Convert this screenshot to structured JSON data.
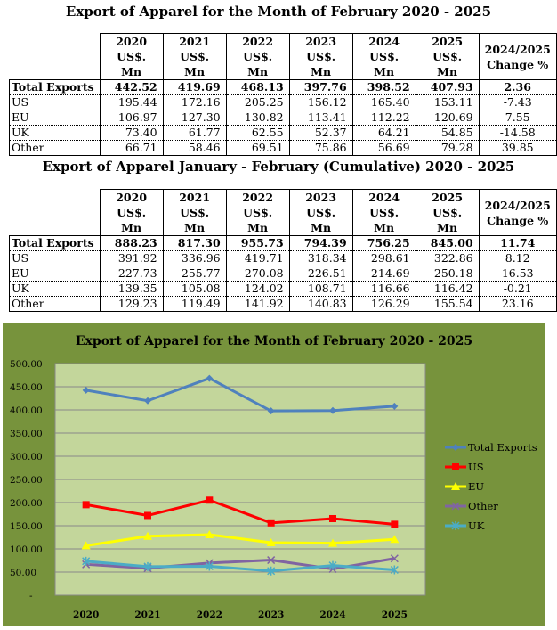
{
  "table1": {
    "title": "Export of Apparel for the Month of February 2020 - 2025",
    "headers": [
      [
        "2020",
        "US$. Mn"
      ],
      [
        "2021",
        "US$. Mn"
      ],
      [
        "2022",
        "US$. Mn"
      ],
      [
        "2023",
        "US$. Mn"
      ],
      [
        "2024",
        "US$. Mn"
      ],
      [
        "2025",
        "US$. Mn"
      ],
      [
        "2024/2025",
        "Change %"
      ]
    ],
    "rows": [
      {
        "label": "Total Exports",
        "values": [
          "442.52",
          "419.69",
          "468.13",
          "397.76",
          "398.52",
          "407.93",
          "2.36"
        ]
      },
      {
        "label": "US",
        "values": [
          "195.44",
          "172.16",
          "205.25",
          "156.12",
          "165.40",
          "153.11",
          "-7.43"
        ]
      },
      {
        "label": "EU",
        "values": [
          "106.97",
          "127.30",
          "130.82",
          "113.41",
          "112.22",
          "120.69",
          "7.55"
        ]
      },
      {
        "label": "UK",
        "values": [
          "73.40",
          "61.77",
          "62.55",
          "52.37",
          "64.21",
          "54.85",
          "-14.58"
        ]
      },
      {
        "label": "Other",
        "values": [
          "66.71",
          "58.46",
          "69.51",
          "75.86",
          "56.69",
          "79.28",
          "39.85"
        ]
      }
    ]
  },
  "table2": {
    "title": "Export of Apparel January - February (Cumulative) 2020 - 2025",
    "headers": [
      [
        "2020",
        "US$. Mn"
      ],
      [
        "2021",
        "US$. Mn"
      ],
      [
        "2022",
        "US$. Mn"
      ],
      [
        "2023",
        "US$. Mn"
      ],
      [
        "2024",
        "US$. Mn"
      ],
      [
        "2025",
        "US$. Mn"
      ],
      [
        "2024/2025",
        "Change %"
      ]
    ],
    "rows": [
      {
        "label": "Total Exports",
        "values": [
          "888.23",
          "817.30",
          "955.73",
          "794.39",
          "756.25",
          "845.00",
          "11.74"
        ]
      },
      {
        "label": "US",
        "values": [
          "391.92",
          "336.96",
          "419.71",
          "318.34",
          "298.61",
          "322.86",
          "8.12"
        ]
      },
      {
        "label": "EU",
        "values": [
          "227.73",
          "255.77",
          "270.08",
          "226.51",
          "214.69",
          "250.18",
          "16.53"
        ]
      },
      {
        "label": "UK",
        "values": [
          "139.35",
          "105.08",
          "124.02",
          "108.71",
          "116.66",
          "116.42",
          "-0.21"
        ]
      },
      {
        "label": "Other",
        "values": [
          "129.23",
          "119.49",
          "141.92",
          "140.83",
          "126.29",
          "155.54",
          "23.16"
        ]
      }
    ]
  },
  "chart_data": {
    "type": "line",
    "title": "Export of Apparel for the Month of February 2020 - 2025",
    "categories": [
      "2020",
      "2021",
      "2022",
      "2023",
      "2024",
      "2025"
    ],
    "ylim": [
      0,
      500
    ],
    "yticks": [
      "-",
      "50.00",
      "100.00",
      "150.00",
      "200.00",
      "250.00",
      "300.00",
      "350.00",
      "400.00",
      "450.00",
      "500.00"
    ],
    "grid": true,
    "legend": "right",
    "background": "#77933c",
    "plot_background": "#c3d69b",
    "series": [
      {
        "name": "Total Exports",
        "color": "#4f81bd",
        "marker": "diamond",
        "values": [
          442.52,
          419.69,
          468.13,
          397.76,
          398.52,
          407.93
        ]
      },
      {
        "name": "US",
        "color": "#ff0000",
        "marker": "square",
        "values": [
          195.44,
          172.16,
          205.25,
          156.12,
          165.4,
          153.11
        ]
      },
      {
        "name": "EU",
        "color": "#ffff00",
        "marker": "triangle",
        "values": [
          106.97,
          127.3,
          130.82,
          113.41,
          112.22,
          120.69
        ]
      },
      {
        "name": "Other",
        "color": "#8064a2",
        "marker": "x",
        "values": [
          66.71,
          58.46,
          69.51,
          75.86,
          56.69,
          79.28
        ]
      },
      {
        "name": "UK",
        "color": "#4bacc6",
        "marker": "star",
        "values": [
          73.4,
          61.77,
          62.55,
          52.37,
          64.21,
          54.85
        ]
      }
    ]
  }
}
